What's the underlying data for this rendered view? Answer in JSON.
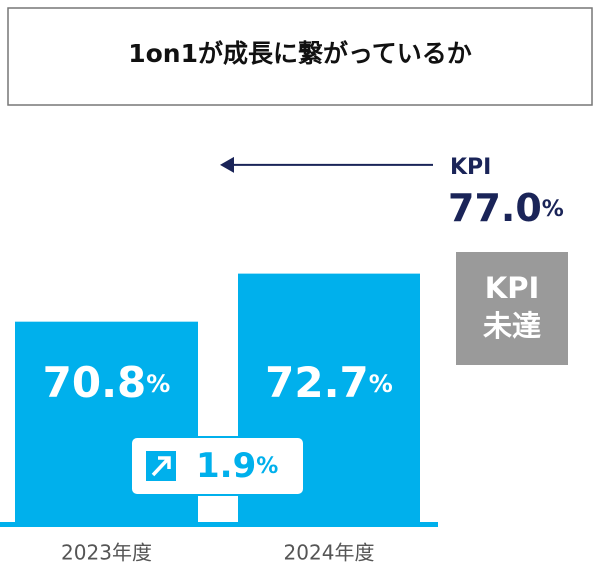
{
  "chart_data": {
    "type": "bar",
    "title": "1on1が成長に繋がっているか",
    "categories": [
      "2023年度",
      "2024年度"
    ],
    "values": [
      70.8,
      72.7
    ],
    "value_labels": [
      "70.8%",
      "72.7%"
    ],
    "color": "#00b0ec",
    "ylim": [
      62.8,
      80
    ],
    "kpi": {
      "name": "KPI",
      "value": 77.0,
      "label": "77.0%",
      "color": "#1a2458"
    },
    "change": {
      "value": 1.9,
      "label": "1.9%"
    },
    "status": [
      "KPI",
      "未達"
    ]
  }
}
